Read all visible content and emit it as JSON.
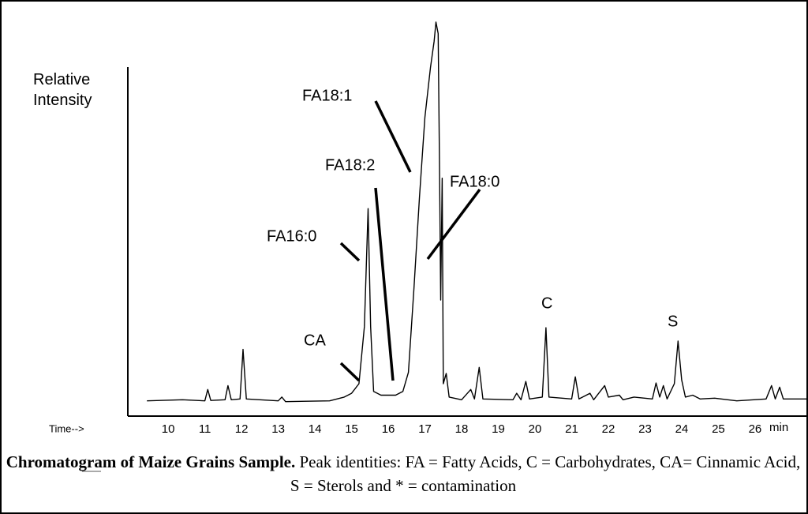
{
  "chart_data": {
    "type": "line",
    "y_label": "Relative Intensity",
    "x_label": "Time-->",
    "x_unit_label": "min",
    "color": "#000000",
    "grid": false,
    "xlim": [
      8.9,
      27.4
    ],
    "ylim": [
      -3.5,
      100
    ],
    "xticks": [
      10,
      11,
      12,
      13,
      14,
      15,
      16,
      17,
      18,
      19,
      20,
      21,
      22,
      23,
      24,
      25,
      26
    ],
    "x": [
      9.42,
      10.39,
      11.0,
      11.08,
      11.16,
      11.55,
      11.63,
      11.72,
      11.96,
      12.04,
      12.13,
      13.0,
      13.1,
      13.2,
      14.4,
      14.8,
      15.0,
      15.2,
      15.35,
      15.45,
      15.52,
      15.6,
      15.8,
      16.2,
      16.4,
      16.55,
      16.7,
      16.85,
      17.0,
      17.15,
      17.25,
      17.3,
      17.36,
      17.4,
      17.43,
      17.47,
      17.5,
      17.58,
      17.66,
      18.0,
      18.25,
      18.35,
      18.48,
      18.58,
      19.4,
      19.5,
      19.62,
      19.75,
      19.85,
      20.2,
      20.3,
      20.38,
      21.0,
      21.1,
      21.2,
      21.5,
      21.6,
      21.9,
      22.0,
      22.3,
      22.4,
      22.7,
      23.2,
      23.3,
      23.4,
      23.5,
      23.6,
      23.8,
      23.9,
      24.0,
      24.1,
      24.3,
      24.5,
      24.9,
      25.5,
      26.3,
      26.45,
      26.55,
      26.67,
      26.77,
      27.4
    ],
    "values": [
      0.5,
      0.8,
      0.5,
      3.5,
      0.6,
      0.8,
      4.5,
      0.8,
      1,
      14,
      1,
      0.5,
      1.5,
      0.3,
      0.5,
      1.5,
      2.5,
      5,
      20,
      51,
      20,
      3,
      2,
      2,
      3,
      8,
      30,
      54,
      75,
      88,
      95,
      100,
      97,
      60,
      27,
      59,
      5,
      7.7,
      1.5,
      0.8,
      3.5,
      1,
      9.3,
      1,
      0.8,
      2.5,
      0.8,
      5.6,
      1,
      1.5,
      19.7,
      1.5,
      1,
      6.8,
      1,
      2.5,
      0.8,
      4.5,
      1.5,
      2,
      0.8,
      1.5,
      1,
      5.2,
      1.5,
      4.5,
      1,
      5,
      16.2,
      6,
      1.5,
      2,
      1,
      1.2,
      0.5,
      1,
      4.5,
      1,
      4.1,
      1,
      1
    ],
    "annotations": [
      "CA",
      "FA16:0",
      "FA18:2",
      "FA18:1",
      "FA18:0",
      "C",
      "S"
    ],
    "caption_title": "Chromatogram of Maize Grains Sample.",
    "caption_text": "Peak identities: FA = Fatty Acids, C = Carbohydrates, CA= Cinnamic Acid, S = Sterols and * = contamination"
  }
}
